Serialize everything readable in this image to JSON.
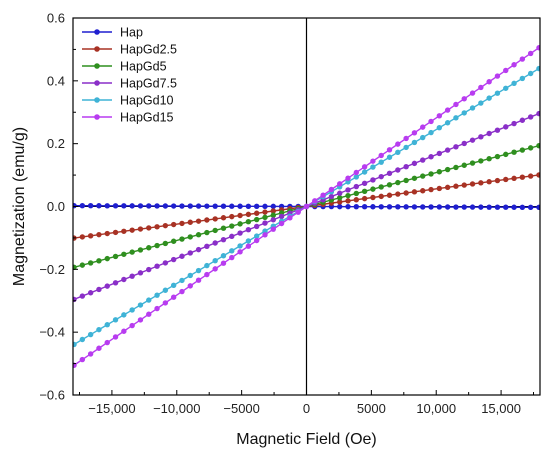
{
  "chart_data": {
    "type": "line",
    "xlabel": "Magnetic Field (Oe)",
    "ylabel": "Magnetization (emu/g)",
    "xlim": [
      -18000,
      18000
    ],
    "ylim": [
      -0.6,
      0.6
    ],
    "x_ticks": [
      -15000,
      -10000,
      -5000,
      0,
      5000,
      10000,
      15000
    ],
    "x_tick_labels": [
      "−15,000",
      "−10,000",
      "−5000",
      "0",
      "5000",
      "10,000",
      "15,000"
    ],
    "y_ticks": [
      -0.6,
      -0.4,
      -0.2,
      0.0,
      0.2,
      0.4,
      0.6
    ],
    "y_tick_labels": [
      "−0.6",
      "−0.4",
      "−0.2",
      "0.0",
      "0.2",
      "0.4",
      "0.6"
    ],
    "grid": false,
    "legend_position": "top-left",
    "series": [
      {
        "name": "Hap",
        "color": "#1f1fcf",
        "slope_emu_g_per_oe": -1.5e-07,
        "saturation_emu_g": 0
      },
      {
        "name": "HapGd2.5",
        "color": "#a83224",
        "slope_emu_g_per_oe": 5.6e-06,
        "saturation_emu_g": 0
      },
      {
        "name": "HapGd5",
        "color": "#2f8f1f",
        "slope_emu_g_per_oe": 1.08e-05,
        "saturation_emu_g": 0
      },
      {
        "name": "HapGd7.5",
        "color": "#8a2fc8",
        "slope_emu_g_per_oe": 1.65e-05,
        "saturation_emu_g": 0
      },
      {
        "name": "HapGd10",
        "color": "#3fb3d6",
        "slope_emu_g_per_oe": 2.45e-05,
        "saturation_emu_g": 0
      },
      {
        "name": "HapGd15",
        "color": "#b83cf0",
        "slope_emu_g_per_oe": 2.82e-05,
        "saturation_emu_g": 0
      }
    ]
  }
}
